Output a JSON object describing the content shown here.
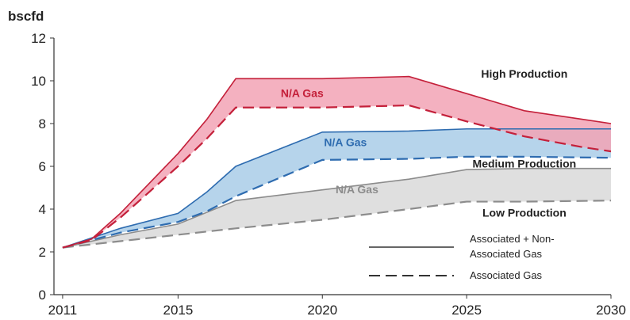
{
  "chart_data": {
    "type": "area",
    "ylabel": "bscfd",
    "ylim": [
      0,
      12
    ],
    "yticks": [
      0,
      2,
      4,
      6,
      8,
      10,
      12
    ],
    "xlim": [
      2010.7,
      2030
    ],
    "xticks": [
      2011,
      2015,
      2020,
      2025,
      2030
    ],
    "grid": false,
    "legend": [
      {
        "label": "Associated + Non-Associated Gas",
        "line_label_1": "Associated + Non-",
        "line_label_2": "Associated Gas",
        "style": "solid"
      },
      {
        "label": "Associated Gas",
        "style": "dashed"
      }
    ],
    "series": [
      {
        "name": "High Production",
        "color": "#f2a3b5",
        "line_color": "#c4203a",
        "band_label": "N/A Gas",
        "x": [
          2011,
          2012,
          2013,
          2014,
          2015,
          2016,
          2017,
          2020,
          2023,
          2025,
          2027,
          2029,
          2030
        ],
        "total": [
          2.2,
          2.6,
          3.8,
          5.2,
          6.6,
          8.2,
          10.1,
          10.1,
          10.2,
          9.4,
          8.6,
          8.2,
          8.0
        ],
        "associated": [
          2.2,
          2.55,
          3.6,
          4.8,
          6.0,
          7.3,
          8.75,
          8.75,
          8.85,
          8.1,
          7.4,
          6.9,
          6.7
        ]
      },
      {
        "name": "Medium Production",
        "color": "#a9cce8",
        "line_color": "#2e6cb0",
        "band_label": "N/A Gas",
        "x": [
          2011,
          2013,
          2015,
          2016,
          2017,
          2020,
          2023,
          2025,
          2027,
          2030
        ],
        "total": [
          2.2,
          3.1,
          3.8,
          4.8,
          6.0,
          7.6,
          7.65,
          7.75,
          7.75,
          7.75
        ],
        "associated": [
          2.2,
          2.9,
          3.4,
          3.9,
          4.6,
          6.3,
          6.35,
          6.45,
          6.45,
          6.4
        ]
      },
      {
        "name": "Low Production",
        "color": "#d9d9d9",
        "line_color": "#8c8c8c",
        "band_label": "N/A Gas",
        "x": [
          2011,
          2013,
          2015,
          2017,
          2020,
          2023,
          2025,
          2027,
          2030
        ],
        "total": [
          2.2,
          2.8,
          3.3,
          4.4,
          4.9,
          5.4,
          5.85,
          5.9,
          5.9
        ],
        "associated": [
          2.2,
          2.5,
          2.8,
          3.1,
          3.5,
          4.0,
          4.35,
          4.35,
          4.4
        ]
      }
    ]
  }
}
